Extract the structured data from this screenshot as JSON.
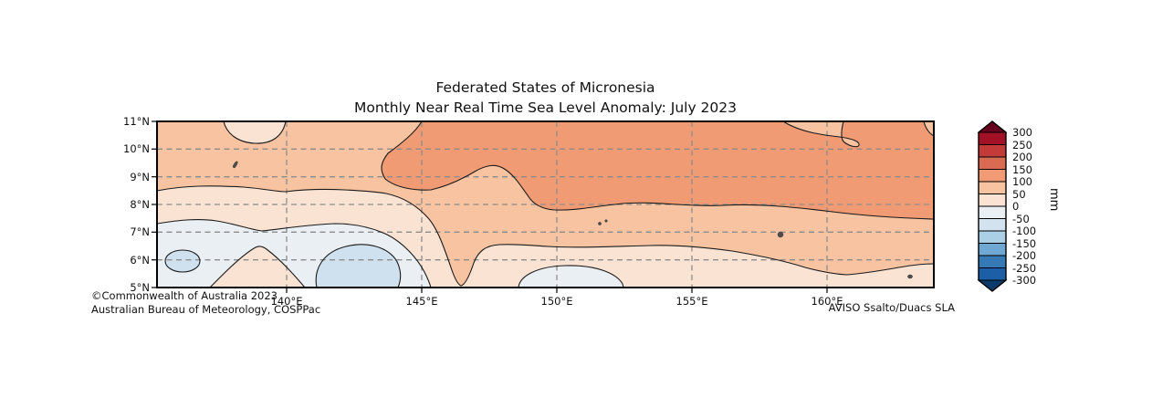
{
  "title": {
    "line1": "Federated States of Micronesia",
    "line2": "Monthly Near Real Time Sea Level Anomaly: July 2023"
  },
  "map": {
    "y_ticks": [
      "11°N",
      "10°N",
      "9°N",
      "8°N",
      "7°N",
      "6°N",
      "5°N"
    ],
    "x_ticks": [
      "140°E",
      "145°E",
      "150°E",
      "155°E",
      "160°E"
    ]
  },
  "colorbar": {
    "ticks": [
      "300",
      "250",
      "200",
      "150",
      "100",
      "50",
      "0",
      "-50",
      "-100",
      "-150",
      "-200",
      "-250",
      "-300"
    ],
    "unit": "mm",
    "segment_colors": [
      "#a31126",
      "#c23b39",
      "#da6b53",
      "#f19b74",
      "#f8c3a1",
      "#fbe3d3",
      "#eaeff3",
      "#d2e3ef",
      "#abcfe5",
      "#6fa8d2",
      "#3579b5",
      "#1c5fa6"
    ],
    "over_color": "#67001f",
    "under_color": "#0c3a6b"
  },
  "credits": {
    "left_line1": "©Commonwealth of Australia 2023",
    "left_line2": "Australian Bureau of Meteorology, COSPPac",
    "right": "AVISO Ssalto/Duacs SLA"
  },
  "colors": {
    "sla_p100_150": "#f19b74",
    "sla_p50_100": "#f8c3a1",
    "sla_p0_50": "#fbe3d3",
    "sla_m50_0": "#eaeff3",
    "sla_m100_m50": "#cfe1ee",
    "contour_line": "#1a1a1a",
    "grid": "#8c8c8c",
    "frame": "#000000",
    "land": "#4d4d4d",
    "text": "#111111"
  },
  "chart_data": {
    "type": "heatmap",
    "title": "Federated States of Micronesia — Monthly Near Real Time Sea Level Anomaly: July 2023",
    "x_ticks_deg_east": [
      140,
      145,
      150,
      155,
      160
    ],
    "y_ticks_deg_north": [
      11,
      10,
      9,
      8,
      7,
      6,
      5
    ],
    "x_range_deg_east": [
      135.2,
      164.0
    ],
    "y_range_deg_north": [
      5,
      11
    ],
    "value_units": "mm",
    "colorbar_levels_mm": [
      -300,
      -250,
      -200,
      -150,
      -100,
      -50,
      0,
      50,
      100,
      150,
      200,
      250,
      300
    ],
    "visible_contour_levels_mm": [
      -50,
      0,
      50,
      100
    ],
    "grid": "dashed, at labeled ticks",
    "legend_position": "vertical colorbar, right side, pointed over/under ends",
    "regions": [
      {
        "area": "north and northeast sector, roughly north of 8.3–8.7°N and east of ~145°E",
        "anomaly_mm": "+100 to +150"
      },
      {
        "area": "northwest sector (west of ~145°E, north of ~8.3°N) plus tongues from the north edge near 158–159°E and the far northeast corner",
        "anomaly_mm": "+50 to +100"
      },
      {
        "area": "small patch on the northern edge near 141–142.5°E",
        "anomaly_mm": "0 to +50"
      },
      {
        "area": "broad central-southern band, south-center column near 146.8°E reaching the south edge, and southeast corner",
        "anomaly_mm": "0 to +50 (narrow +50–100 dip near 146.8°E)"
      },
      {
        "area": "southwest band ~5–7.3°N west of ~145°E and a small pocket near 148.5–152.5°E south of ~5.8°N",
        "anomaly_mm": "-50 to 0"
      },
      {
        "area": "cores near 136.2°E 6.0°N and 141–144°E 5–6.5°N",
        "anomaly_mm": "-100 to -50"
      }
    ],
    "land_markers_lon_lat": [
      [
        138.1,
        9.5
      ],
      [
        151.7,
        7.4
      ],
      [
        151.9,
        7.5
      ],
      [
        158.2,
        6.9
      ],
      [
        163.0,
        5.3
      ]
    ]
  }
}
